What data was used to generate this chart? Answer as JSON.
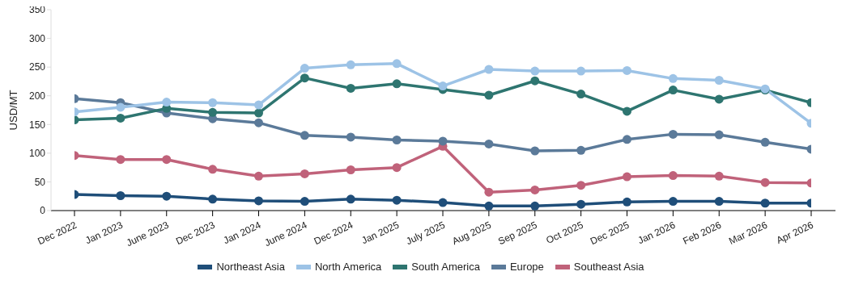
{
  "chart_data": {
    "type": "line",
    "ylabel": "USD/MT",
    "categories": [
      "Dec 2022",
      "Jan 2023",
      "June 2023",
      "Dec 2023",
      "Jan 2024",
      "June 2024",
      "Dec 2024",
      "Jan 2025",
      "July 2025",
      "Aug 2025",
      "Sep 2025",
      "Oct 2025",
      "Dec 2025",
      "Jan 2026",
      "Feb 2026",
      "Mar 2026",
      "Apr 2026"
    ],
    "series": [
      {
        "name": "Northeast Asia",
        "color": "#1f4e79",
        "values": [
          28,
          26,
          25,
          20,
          17,
          16,
          20,
          18,
          14,
          8,
          8,
          11,
          15,
          16,
          16,
          13,
          13
        ]
      },
      {
        "name": "North America",
        "color": "#9dc3e6",
        "values": [
          172,
          180,
          189,
          188,
          184,
          248,
          254,
          256,
          217,
          246,
          243,
          243,
          244,
          230,
          227,
          212,
          152
        ]
      },
      {
        "name": "South America",
        "color": "#2e7570",
        "values": [
          158,
          161,
          178,
          171,
          170,
          231,
          213,
          221,
          211,
          201,
          226,
          203,
          173,
          210,
          194,
          210,
          188
        ]
      },
      {
        "name": "Europe",
        "color": "#5b7a99",
        "values": [
          195,
          188,
          170,
          160,
          153,
          131,
          128,
          123,
          121,
          116,
          104,
          105,
          124,
          133,
          132,
          119,
          107
        ]
      },
      {
        "name": "Southeast Asia",
        "color": "#c0627a",
        "values": [
          96,
          89,
          89,
          72,
          60,
          64,
          71,
          75,
          112,
          32,
          36,
          44,
          59,
          61,
          60,
          49,
          48
        ]
      }
    ],
    "ylim": [
      0,
      350
    ],
    "yticks": [
      0,
      50,
      100,
      150,
      200,
      250,
      300,
      350
    ],
    "grid": false,
    "legend": "bottom",
    "marker": "circle",
    "line_style": "solid"
  }
}
